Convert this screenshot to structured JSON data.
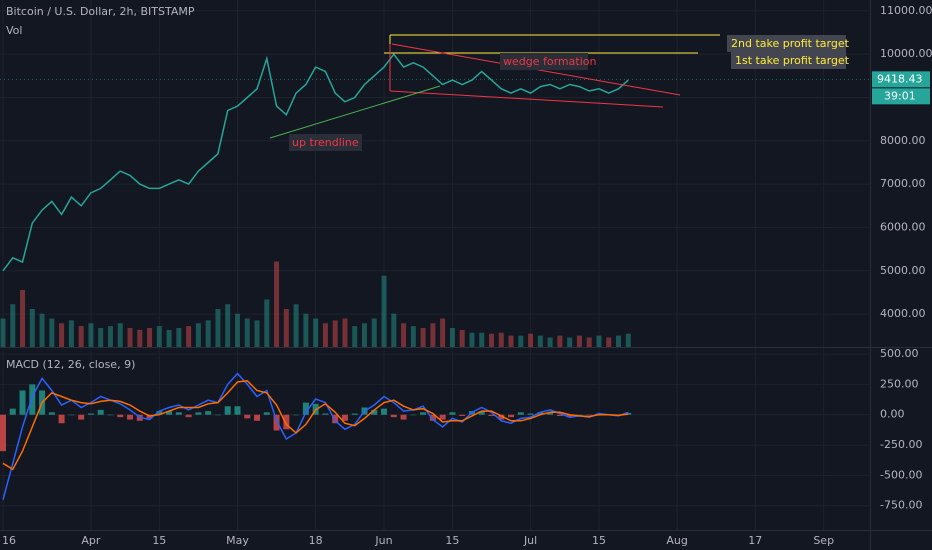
{
  "chart_data": [
    {
      "type": "line",
      "title": "Bitcoin / U.S. Dollar, 2h, BITSTAMP",
      "categories": [
        "16",
        null,
        null,
        null,
        null,
        null,
        null,
        null,
        null,
        "Apr",
        null,
        null,
        null,
        null,
        null,
        null,
        "15",
        null,
        null,
        null,
        null,
        null,
        null,
        null,
        "May",
        null,
        null,
        null,
        null,
        null,
        null,
        null,
        "18",
        null,
        null,
        null,
        null,
        null,
        null,
        "Jun",
        null,
        null,
        null,
        null,
        null,
        null,
        "15",
        null,
        null,
        null,
        null,
        null,
        null,
        null,
        "Jul",
        null,
        null,
        null,
        null,
        null,
        null,
        "15",
        null,
        null,
        null,
        null,
        null,
        null,
        null,
        "Aug",
        null,
        null,
        null,
        null,
        null,
        null,
        null,
        "17",
        null,
        null,
        null,
        null,
        null,
        null,
        "Sep",
        null,
        null,
        null,
        null
      ],
      "series": [
        {
          "color": "#26a69a",
          "values": [
            5000,
            5300,
            5200,
            6100,
            6400,
            6600,
            6300,
            6700,
            6500,
            6800,
            6900,
            7100,
            7300,
            7200,
            7000,
            6900,
            6900,
            7000,
            7100,
            7000,
            7300,
            7500,
            7700,
            8700,
            8800,
            9000,
            9200,
            9900,
            8800,
            8600,
            9100,
            9300,
            9700,
            9600,
            9100,
            8900,
            9000,
            9300,
            9500,
            9700,
            10000,
            9700,
            9800,
            9700,
            9500,
            9300,
            9400,
            9300,
            9400,
            9600,
            9400,
            9200,
            9100,
            9200,
            9100,
            9250,
            9300,
            9200,
            9300,
            9250,
            9150,
            9200,
            9100,
            9200,
            9400,
            null,
            null,
            null,
            null,
            null,
            null,
            null,
            null,
            null,
            null,
            null,
            null,
            null,
            null,
            null,
            null,
            null,
            null,
            null,
            null,
            null,
            null,
            null,
            null
          ]
        }
      ],
      "volume": {
        "label": "Vol",
        "up_color": "#26a69a",
        "down_color": "#ef5350",
        "vlim": [
          0,
          100
        ],
        "values": [
          30,
          45,
          60,
          40,
          35,
          30,
          25,
          28,
          22,
          25,
          20,
          22,
          25,
          20,
          18,
          20,
          22,
          18,
          20,
          22,
          25,
          28,
          40,
          45,
          35,
          30,
          28,
          50,
          90,
          40,
          45,
          35,
          30,
          25,
          28,
          30,
          22,
          25,
          30,
          75,
          35,
          25,
          22,
          20,
          25,
          30,
          20,
          18,
          15,
          15,
          14,
          15,
          12,
          12,
          14,
          12,
          10,
          12,
          10,
          12,
          10,
          12,
          10,
          12,
          14,
          null,
          null,
          null,
          null,
          null,
          null,
          null,
          null,
          null,
          null,
          null,
          null,
          null,
          null,
          null,
          null,
          null,
          null,
          null,
          null,
          null,
          null,
          null,
          null
        ]
      },
      "ylim": [
        3240,
        11250
      ],
      "yticks": [
        {
          "value": 4000,
          "label": "4000.00"
        },
        {
          "value": 5000,
          "label": "5000.00"
        },
        {
          "value": 6000,
          "label": "6000.00"
        },
        {
          "value": 7000,
          "label": "7000.00"
        },
        {
          "value": 8000,
          "label": "8000.00"
        },
        {
          "value": 9000,
          "label": "9000.00"
        },
        {
          "value": 10000,
          "label": "10000.00"
        },
        {
          "value": 11000,
          "label": "11000.00"
        }
      ],
      "last_price": {
        "value": 9418.43,
        "label": "9418.43",
        "color": "#26a69a"
      },
      "countdown": "39:01",
      "annotations": [
        "2nd take profit target",
        "1st take profit target",
        "wedge formation",
        "up trendline"
      ],
      "grid": true
    },
    {
      "type": "line",
      "title": "MACD (12, 26, close, 9)",
      "series": [
        {
          "type": "bar",
          "color": "#26a69a",
          "negative_color": "#ef5350",
          "values": [
            -300,
            50,
            200,
            250,
            200,
            20,
            -70,
            0,
            -40,
            10,
            40,
            0,
            -20,
            -40,
            -50,
            -30,
            30,
            30,
            20,
            -20,
            20,
            30,
            0,
            70,
            70,
            -30,
            -50,
            20,
            -130,
            -120,
            0,
            100,
            90,
            10,
            -70,
            -50,
            10,
            60,
            40,
            50,
            -20,
            -40,
            0,
            20,
            -50,
            -40,
            20,
            -10,
            30,
            30,
            -10,
            -40,
            -20,
            20,
            10,
            20,
            20,
            -10,
            -20,
            0,
            -5,
            10,
            0,
            -5,
            15,
            null,
            null,
            null,
            null,
            null,
            null,
            null,
            null,
            null,
            null,
            null,
            null,
            null,
            null,
            null,
            null,
            null,
            null,
            null,
            null,
            null,
            null,
            null,
            null
          ]
        },
        {
          "type": "line",
          "color": "#2962ff",
          "values": [
            -700,
            -400,
            -100,
            150,
            300,
            200,
            80,
            120,
            60,
            100,
            150,
            120,
            90,
            40,
            -20,
            -40,
            30,
            60,
            80,
            40,
            80,
            120,
            100,
            250,
            340,
            250,
            150,
            200,
            -50,
            -200,
            -150,
            20,
            130,
            100,
            -50,
            -120,
            -80,
            30,
            80,
            150,
            100,
            30,
            40,
            70,
            -40,
            -100,
            -30,
            -60,
            20,
            60,
            20,
            -50,
            -70,
            -30,
            -20,
            20,
            40,
            10,
            -20,
            -10,
            -20,
            10,
            0,
            -10,
            20,
            null,
            null,
            null,
            null,
            null,
            null,
            null,
            null,
            null,
            null,
            null,
            null,
            null,
            null,
            null,
            null,
            null,
            null,
            null,
            null,
            null,
            null,
            null,
            null
          ]
        },
        {
          "type": "line",
          "color": "#ff6d00",
          "values": [
            -400,
            -450,
            -300,
            -100,
            100,
            180,
            150,
            120,
            100,
            90,
            110,
            120,
            110,
            80,
            30,
            -10,
            0,
            30,
            60,
            60,
            60,
            90,
            100,
            180,
            270,
            280,
            200,
            180,
            80,
            -80,
            -150,
            -80,
            40,
            90,
            20,
            -70,
            -90,
            -30,
            40,
            100,
            120,
            70,
            40,
            50,
            10,
            -60,
            -50,
            -50,
            -10,
            30,
            30,
            -10,
            -50,
            -50,
            -30,
            0,
            20,
            20,
            0,
            -10,
            -15,
            0,
            0,
            -5,
            5,
            null,
            null,
            null,
            null,
            null,
            null,
            null,
            null,
            null,
            null,
            null,
            null,
            null,
            null,
            null,
            null,
            null,
            null,
            null,
            null,
            null,
            null,
            null,
            null
          ]
        }
      ],
      "ylim": [
        -950,
        550
      ],
      "yticks": [
        {
          "value": 500,
          "label": "500.00"
        },
        {
          "value": 250,
          "label": "250.00"
        },
        {
          "value": 0,
          "label": "0.00"
        },
        {
          "value": -250,
          "label": "-250.00"
        },
        {
          "value": -500,
          "label": "-500.00"
        },
        {
          "value": -750,
          "label": "-750.00"
        }
      ],
      "grid": true
    }
  ]
}
